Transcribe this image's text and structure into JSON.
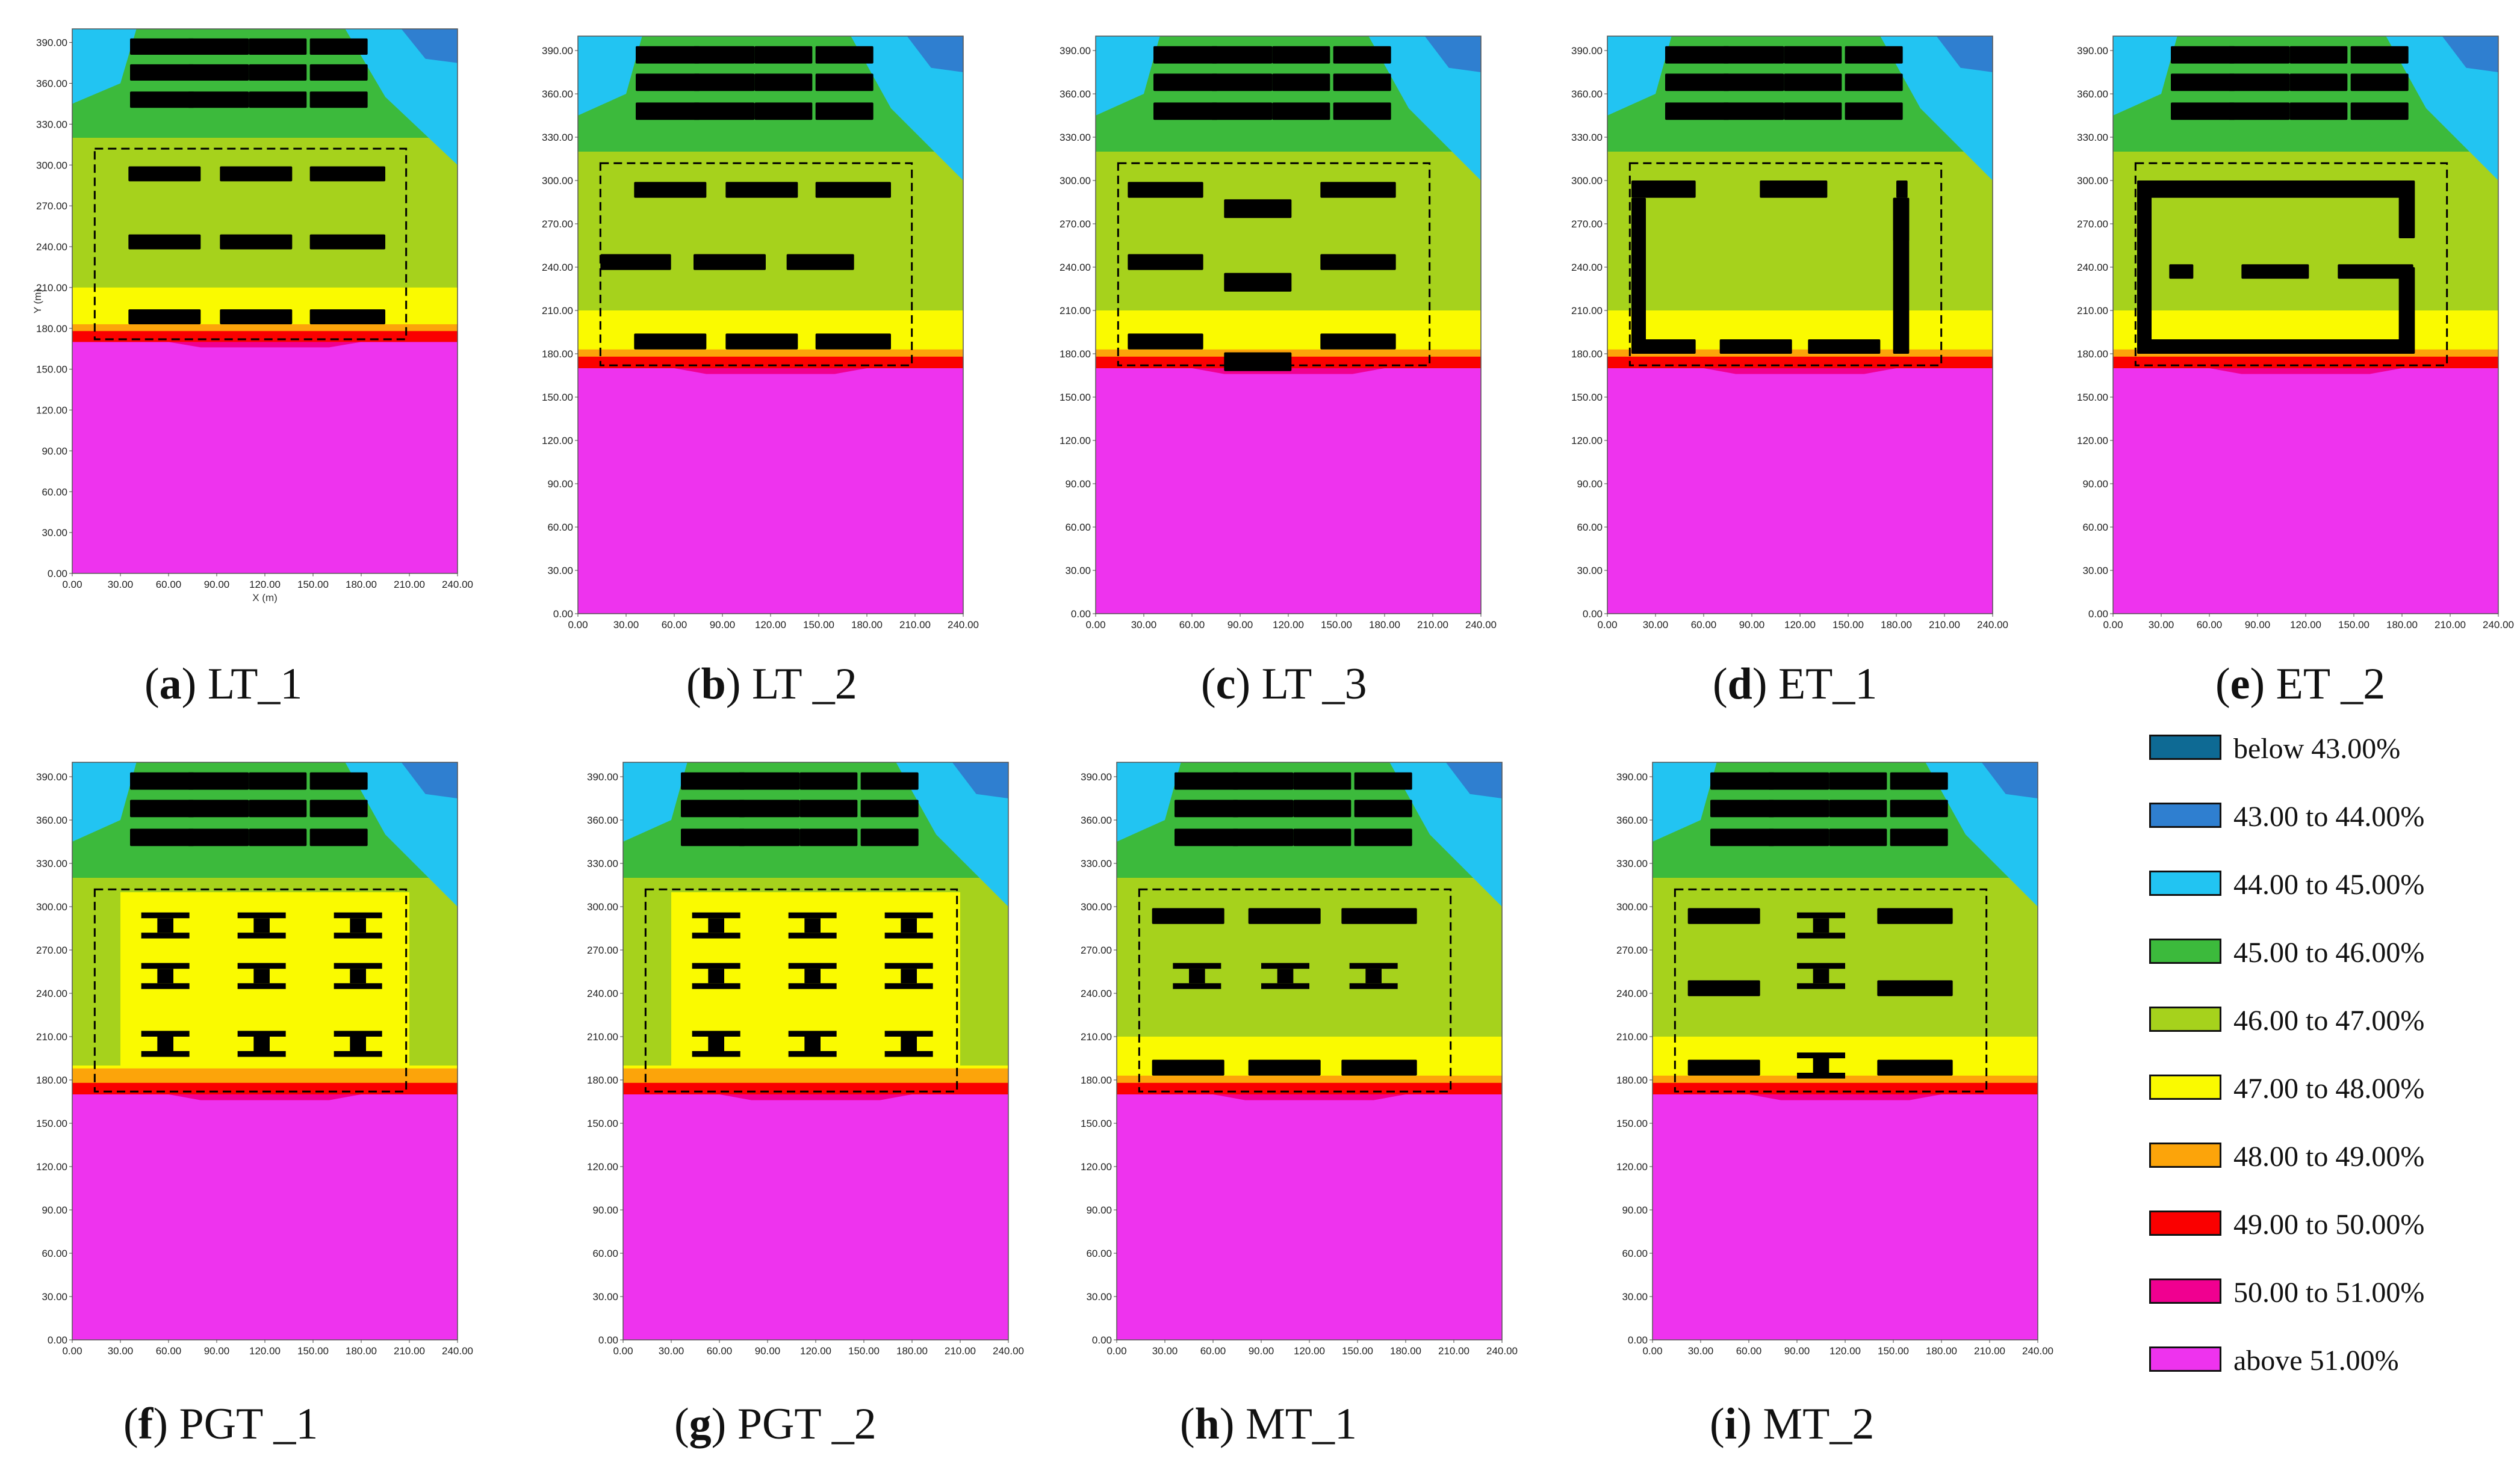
{
  "chart_data": {
    "type": "heatmap",
    "x_ticks": [
      "0.00",
      "30.00",
      "60.00",
      "90.00",
      "120.00",
      "150.00",
      "180.00",
      "210.00",
      "240.00"
    ],
    "y_ticks": [
      "0.00",
      "30.00",
      "60.00",
      "90.00",
      "120.00",
      "150.00",
      "180.00",
      "210.00",
      "240.00",
      "270.00",
      "300.00",
      "330.00",
      "360.00",
      "390.00"
    ],
    "xlabel": "X (m)",
    "ylabel": "Y (m)",
    "xlim": [
      0,
      240
    ],
    "ylim": [
      0,
      400
    ],
    "legend": [
      {
        "label": "below 43.00%",
        "color": "#0e6a94"
      },
      {
        "label": "43.00 to 44.00%",
        "color": "#2f7fd0"
      },
      {
        "label": "44.00 to 45.00%",
        "color": "#22c4f2"
      },
      {
        "label": "45.00 to 46.00%",
        "color": "#3cba3c"
      },
      {
        "label": "46.00 to 47.00%",
        "color": "#a6d21c"
      },
      {
        "label": "47.00 to 48.00%",
        "color": "#fafa00"
      },
      {
        "label": "48.00 to 49.00%",
        "color": "#fca40a"
      },
      {
        "label": "49.00 to 50.00%",
        "color": "#fa0000"
      },
      {
        "label": "50.00 to 51.00%",
        "color": "#f00090"
      },
      {
        "label": "above 51.00%",
        "color": "#ee33ee"
      }
    ],
    "panels": [
      {
        "letter": "a",
        "name": " LT_1",
        "layout": "LT_1",
        "show_axis_labels": true
      },
      {
        "letter": "b",
        "name": " LT _2",
        "layout": "LT_2",
        "show_axis_labels": false
      },
      {
        "letter": "c",
        "name": " LT _3",
        "layout": "LT_3",
        "show_axis_labels": false
      },
      {
        "letter": "d",
        "name": " ET_1",
        "layout": "ET_1",
        "show_axis_labels": false
      },
      {
        "letter": "e",
        "name": " ET _2",
        "layout": "ET_2",
        "show_axis_labels": false
      },
      {
        "letter": "f",
        "name": " PGT _1",
        "layout": "PGT_1",
        "show_axis_labels": false
      },
      {
        "letter": "g",
        "name": " PGT _2",
        "layout": "PGT_2",
        "show_axis_labels": false
      },
      {
        "letter": "h",
        "name": " MT_1",
        "layout": "MT_1",
        "show_axis_labels": false
      },
      {
        "letter": "i",
        "name": " MT_2",
        "layout": "MT_2",
        "show_axis_labels": false
      }
    ]
  }
}
